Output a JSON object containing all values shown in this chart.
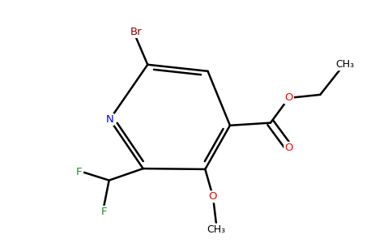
{
  "background_color": "#ffffff",
  "atom_colors": {
    "Br": "#8b0000",
    "N": "#0000ff",
    "F": "#228b22",
    "O": "#ff0000",
    "C": "#000000"
  },
  "figsize": [
    4.84,
    3.0
  ],
  "dpi": 100
}
